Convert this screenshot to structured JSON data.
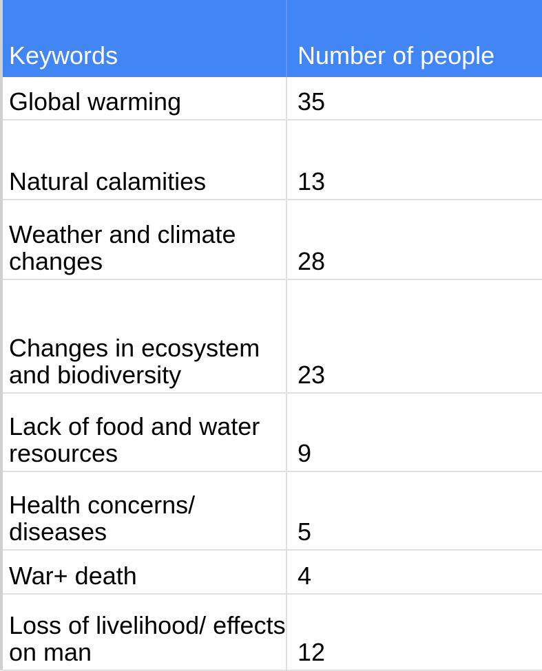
{
  "table": {
    "columns": [
      "Keywords",
      "Number of people"
    ],
    "rows": [
      {
        "keyword": "Global warming",
        "count": "35"
      },
      {
        "keyword": "Natural calamities",
        "count": "13"
      },
      {
        "keyword": "Weather and climate changes",
        "count": "28"
      },
      {
        "keyword": "Changes in ecosystem and biodiversity",
        "count": "23"
      },
      {
        "keyword": "Lack of food and water resources",
        "count": "9"
      },
      {
        "keyword": "Health concerns/ diseases",
        "count": "5"
      },
      {
        "keyword": "War+ death",
        "count": "4"
      },
      {
        "keyword": "Loss of livelihood/ effects on man",
        "count": "12"
      }
    ]
  },
  "colors": {
    "header_background": "#4285f4",
    "header_text": "#ffffff",
    "grid_line": "#e0e0e0"
  }
}
